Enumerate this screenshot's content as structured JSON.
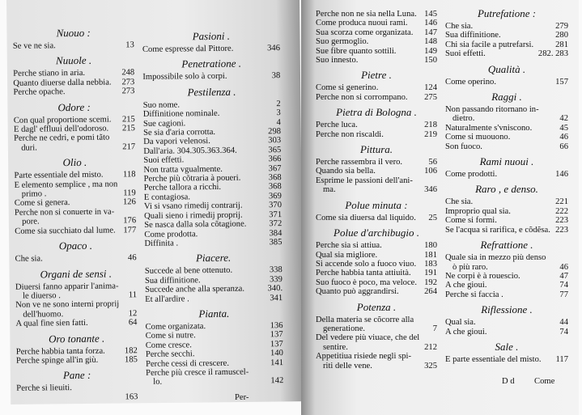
{
  "columns": [
    {
      "sections": [
        {
          "heading": "Nuouo :",
          "entries": [
            {
              "text": "Se ve ne sia.",
              "page": "13"
            }
          ]
        },
        {
          "heading": "Nuuole .",
          "entries": [
            {
              "text": "Perche stiano in aria.",
              "page": "248"
            },
            {
              "text": "Quanto diuerse dalla nebbia.",
              "page": "273"
            },
            {
              "text": "Perche opache.",
              "page": "273"
            }
          ]
        },
        {
          "heading": "Odore :",
          "entries": [
            {
              "text": "Con qual proportione scemi.",
              "page": "215"
            },
            {
              "text": "E dagl' effluui dell'odoroso.",
              "page": "215"
            },
            {
              "text": "Perche ne cedri, e pomi tãto",
              "cont": "duri.",
              "page": "217"
            }
          ]
        },
        {
          "heading": "Olio .",
          "entries": [
            {
              "text": "Parte essentiale del misto.",
              "page": "118"
            },
            {
              "text": "E elemento semplice , ma non",
              "cont": "primo .",
              "page": "119"
            },
            {
              "text": "Come si genera.",
              "page": "126"
            },
            {
              "text": "Perche non si conuerte in va-",
              "cont": "pore.",
              "page": "176"
            },
            {
              "text": "Come sia succhiato dal lume.",
              "page": "177"
            }
          ]
        },
        {
          "heading": "Opaco .",
          "entries": [
            {
              "text": "Che sia.",
              "page": "46"
            }
          ]
        },
        {
          "heading": "Organi de sensi .",
          "entries": [
            {
              "text": "Diuersi fanno apparir l'anima-",
              "cont": "le diuerso .",
              "page": "11"
            },
            {
              "text": "Non ve ne sono interni proprij",
              "cont": "dell'huomo.",
              "page": "12"
            },
            {
              "text": "A qual fine sien fatti.",
              "page": "64"
            }
          ]
        },
        {
          "heading": "Oro tonante .",
          "entries": [
            {
              "text": "Perche habbia tanta forza.",
              "page": "182"
            },
            {
              "text": "Perche spinge all'in giù.",
              "page": "185"
            }
          ]
        },
        {
          "heading": "Pane :",
          "entries": [
            {
              "text": "Perche si lieuiti.",
              "cont": "",
              "page": "163"
            }
          ]
        }
      ]
    },
    {
      "sections": [
        {
          "heading": "Pasioni .",
          "entries": [
            {
              "text": "Come espresse dal Pittore.",
              "page": "346"
            }
          ]
        },
        {
          "heading": "Penetratione .",
          "entries": [
            {
              "text": "Impossibile solo à corpi.",
              "page": "38"
            }
          ]
        },
        {
          "heading": "Pestilenza .",
          "entries": [
            {
              "text": "Suo nome.",
              "page": "2"
            },
            {
              "text": "Diffinitione nominale.",
              "page": "3"
            },
            {
              "text": "Sue cagioni.",
              "page": "4"
            },
            {
              "text": "Se sia d'aria corrotta.",
              "page": "298"
            },
            {
              "text": "Da vapori velenosi.",
              "page": "303"
            },
            {
              "text": "Dall'aria.   304.305.363.364.",
              "page": "365"
            },
            {
              "text": "Suoi effetti.",
              "page": "366"
            },
            {
              "text": "Non tratta vgualmente.",
              "page": "367"
            },
            {
              "text": "Perche più cõtraria à poueri.",
              "page": "368"
            },
            {
              "text": "Perche tallora a ricchi.",
              "page": "368"
            },
            {
              "text": "E contagiosa.",
              "page": "369"
            },
            {
              "text": "Vi si vsano rimedij contrarij.",
              "page": "370"
            },
            {
              "text": "Quali sieno i rimedij proprij.",
              "page": "371"
            },
            {
              "text": "Se nasca dalla sola cõtagione.",
              "page": "372"
            },
            {
              "text": "Come prodotta.",
              "page": "384"
            },
            {
              "text": "Diffinita .",
              "page": "385"
            }
          ]
        },
        {
          "heading": "Piacere.",
          "entries": [
            {
              "text": "Succede al bene ottenuto.",
              "page": "338"
            },
            {
              "text": "Sua diffinitione.",
              "page": "339"
            },
            {
              "text": "Succede anche alla speranza.",
              "page": "340."
            },
            {
              "text": "Et all'ardire .",
              "page": "341"
            }
          ]
        },
        {
          "heading": "Pianta.",
          "entries": [
            {
              "text": "Come organizata.",
              "page": "136"
            },
            {
              "text": "Come si nutre.",
              "page": "137"
            },
            {
              "text": "Come cresce.",
              "page": "137"
            },
            {
              "text": "Perche secchi.",
              "page": "140"
            },
            {
              "text": "Perche cessi di crescere.",
              "page": "141"
            },
            {
              "text": "Perche più cresce il ramuscel-",
              "cont": "lo.",
              "page": "142"
            }
          ]
        }
      ]
    },
    {
      "sections": [
        {
          "heading": "",
          "entries": [
            {
              "text": "Perche non ne sia nella Luna.",
              "page": "145"
            },
            {
              "text": "Come produca nuoui rami.",
              "page": "146"
            },
            {
              "text": "Sua scorza come organizata.",
              "page": "147"
            },
            {
              "text": "Suo germoglio.",
              "page": "148"
            },
            {
              "text": "Sue fibre quanto sottili.",
              "page": "149"
            },
            {
              "text": "Suo innesto.",
              "page": "150"
            }
          ]
        },
        {
          "heading": "Pietre .",
          "entries": [
            {
              "text": "Come si generino.",
              "page": "124"
            },
            {
              "text": "Perche non si corrompano.",
              "page": "275"
            }
          ]
        },
        {
          "heading": "Pietra di Bologna .",
          "entries": [
            {
              "text": "Perche luca.",
              "page": "218"
            },
            {
              "text": "Perche non riscaldi.",
              "page": "219"
            }
          ]
        },
        {
          "heading": "Pittura.",
          "entries": [
            {
              "text": "Perche rassembra il vero.",
              "page": "56"
            },
            {
              "text": "Quando sia bella.",
              "page": "106"
            },
            {
              "text": "Esprime le passioni dell'ani-",
              "cont": "ma.",
              "page": "346"
            }
          ]
        },
        {
          "heading": "Polue minuta :",
          "entries": [
            {
              "text": "Come sia diuersa dal liquido.",
              "page": "25"
            }
          ]
        },
        {
          "heading": "Polue d'archibugio .",
          "entries": [
            {
              "text": "Perche sia si attiua.",
              "page": "180"
            },
            {
              "text": "Qual sia migliore.",
              "page": "181"
            },
            {
              "text": "Si accende solo a fuoco viuo.",
              "page": "183"
            },
            {
              "text": "Perche habbia tanta attiuità.",
              "page": "191"
            },
            {
              "text": "Suo fuoco è poco, ma veloce.",
              "page": "192"
            },
            {
              "text": "Quanto può aggrandirsi.",
              "page": "264"
            }
          ]
        },
        {
          "heading": "Potenza .",
          "entries": [
            {
              "text": "Della materia se cõcorre alla",
              "cont": "generatione.",
              "page": "7"
            },
            {
              "text": "Del vedere più viuace, che del",
              "cont": "sentire.",
              "page": "212"
            },
            {
              "text": "Appetitiua risiede negli spi-",
              "cont": "riti delle vene.",
              "page": "325"
            }
          ]
        }
      ]
    },
    {
      "sections": [
        {
          "heading": "Putrefatione :",
          "entries": [
            {
              "text": "Che sia.",
              "page": "279"
            },
            {
              "text": "Sua diffinitione.",
              "page": "280"
            },
            {
              "text": "Chi sia facile a putrefarsi.",
              "page": "281"
            },
            {
              "text": "Suoi effetti.",
              "page": "282. 283"
            }
          ]
        },
        {
          "heading": "Qualità .",
          "entries": [
            {
              "text": "Come operino.",
              "page": "157"
            }
          ]
        },
        {
          "heading": "Raggi .",
          "entries": [
            {
              "text": "Non passando ritornano in-",
              "cont": "dietro.",
              "page": "42"
            },
            {
              "text": "Naturalmente s'vniscono.",
              "page": "45"
            },
            {
              "text": "Come si muouono.",
              "page": "46"
            },
            {
              "text": "Son fuoco.",
              "page": "66"
            }
          ]
        },
        {
          "heading": "Rami nuoui .",
          "entries": [
            {
              "text": "Come prodotti.",
              "page": "146"
            }
          ]
        },
        {
          "heading": "Raro , e denso.",
          "entries": [
            {
              "text": "Che sia.",
              "page": "221"
            },
            {
              "text": "Improprio qual sia.",
              "page": "222"
            },
            {
              "text": "Come si formi.",
              "page": "223"
            },
            {
              "text": "Se l'acqua si rarifica, e cõdẽsa.",
              "page": "223"
            }
          ]
        },
        {
          "heading": "Refrattione .",
          "entries": [
            {
              "text": "Quale sia in mezzo più denso",
              "cont": "ò più raro.",
              "page": "46"
            },
            {
              "text": "Ne corpi è à rouescio.",
              "page": "47"
            },
            {
              "text": "A che gioui.",
              "page": "74"
            },
            {
              "text": "Perche si faccia .",
              "page": "77"
            }
          ]
        },
        {
          "heading": "Riflessione .",
          "entries": [
            {
              "text": "Qual sia.",
              "page": "44"
            },
            {
              "text": "A che gioui.",
              "page": "74"
            }
          ]
        },
        {
          "heading": "Sale .",
          "entries": [
            {
              "text": "E parte essentiale del misto.",
              "page": "117"
            }
          ]
        }
      ]
    }
  ],
  "catchwords": {
    "left": "Per-",
    "right_signature": "D d",
    "right": "Come"
  }
}
